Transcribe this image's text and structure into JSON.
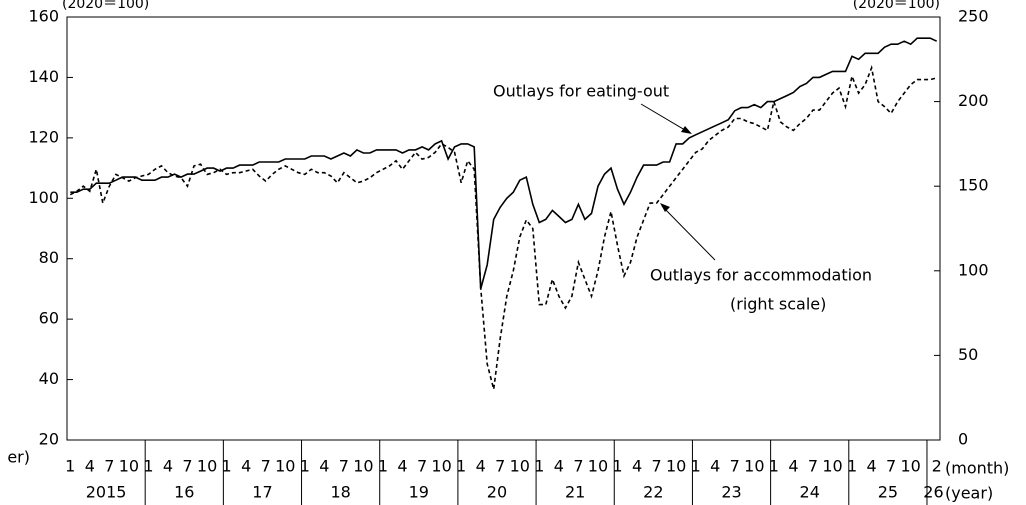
{
  "chart_data": {
    "type": "line",
    "left_unit": "(2020＝100)",
    "right_unit": "(2020＝100)",
    "x_month_label": "(month)",
    "x_year_label": "(year)",
    "left_cut_label": "er)",
    "annotations": [
      "Outlays for eating-out",
      "Outlays for accommodation",
      "(right scale)"
    ],
    "categories": [
      "1",
      null,
      null,
      "4",
      null,
      null,
      "7",
      null,
      null,
      "10",
      null,
      null,
      "1",
      null,
      null,
      "4",
      null,
      null,
      "7",
      null,
      null,
      "10",
      null,
      null,
      "1",
      null,
      null,
      "4",
      null,
      null,
      "7",
      null,
      null,
      "10",
      null,
      null,
      "1",
      null,
      null,
      "4",
      null,
      null,
      "7",
      null,
      null,
      "10",
      null,
      null,
      "1",
      null,
      null,
      "4",
      null,
      null,
      "7",
      null,
      null,
      "10",
      null,
      null,
      "1",
      null,
      null,
      "4",
      null,
      null,
      "7",
      null,
      null,
      "10",
      null,
      null,
      "1",
      null,
      null,
      "4",
      null,
      null,
      "7",
      null,
      null,
      "10",
      null,
      null,
      "1",
      null,
      null,
      "4",
      null,
      null,
      "7",
      null,
      null,
      "10",
      null,
      null,
      "1",
      null,
      null,
      "4",
      null,
      null,
      "7",
      null,
      null,
      "10",
      null,
      null,
      "1",
      null,
      null,
      "4",
      null,
      null,
      "7",
      null,
      null,
      "10",
      null,
      null,
      "1",
      null,
      null,
      "4",
      null,
      null,
      "7",
      null,
      null,
      "10",
      null,
      null,
      null,
      "2"
    ],
    "years": [
      "2015",
      "16",
      "17",
      "18",
      "19",
      "20",
      "21",
      "22",
      "23",
      "24",
      "25",
      "26"
    ],
    "ylim": [
      20,
      160
    ],
    "yticks": [
      20,
      40,
      60,
      80,
      100,
      120,
      140,
      160
    ],
    "y2lim": [
      0,
      250
    ],
    "y2ticks": [
      0,
      50,
      100,
      150,
      200,
      250
    ],
    "series": [
      {
        "name": "Outlays for eating-out",
        "color": "#000000",
        "dash": "solid",
        "values": [
          102,
          102,
          103,
          103,
          105,
          105,
          105,
          106,
          107,
          107,
          107,
          106,
          106,
          106,
          107,
          107,
          108,
          107,
          108,
          108,
          109,
          110,
          110,
          109,
          110,
          110,
          111,
          111,
          111,
          112,
          112,
          112,
          112,
          113,
          113,
          113,
          113,
          114,
          114,
          114,
          113,
          114,
          115,
          114,
          116,
          115,
          115,
          116,
          116,
          116,
          116,
          115,
          116,
          116,
          117,
          116,
          118,
          119,
          113,
          117,
          118,
          118,
          117,
          70,
          78,
          93,
          97,
          100,
          102,
          106,
          107,
          98,
          92,
          93,
          96,
          94,
          92,
          93,
          98,
          93,
          95,
          104,
          108,
          110,
          103,
          98,
          102,
          107,
          111,
          111,
          111,
          112,
          112,
          118,
          118,
          120,
          121,
          122,
          123,
          124,
          125,
          126,
          129,
          130,
          130,
          131,
          130,
          132,
          132,
          133,
          134,
          135,
          137,
          138,
          140,
          140,
          141,
          142,
          142,
          142,
          147,
          146,
          148,
          148,
          148,
          150,
          151,
          151,
          152,
          151,
          153,
          153,
          153,
          152
        ]
      },
      {
        "name": "Outlays for accommodation",
        "color": "#000000",
        "dash": "dashed",
        "axis": "y2",
        "values": [
          145,
          147,
          150,
          147,
          160,
          140,
          150,
          157,
          155,
          153,
          155,
          156,
          157,
          160,
          162,
          158,
          156,
          155,
          150,
          162,
          163,
          157,
          158,
          160,
          157,
          158,
          158,
          159,
          160,
          156,
          153,
          157,
          160,
          162,
          160,
          158,
          157,
          160,
          158,
          158,
          156,
          152,
          158,
          155,
          152,
          153,
          155,
          158,
          160,
          162,
          165,
          160,
          165,
          170,
          166,
          167,
          170,
          175,
          173,
          170,
          152,
          165,
          160,
          90,
          45,
          30,
          60,
          85,
          100,
          120,
          130,
          125,
          80,
          80,
          95,
          85,
          78,
          85,
          105,
          95,
          85,
          100,
          120,
          135,
          115,
          97,
          105,
          120,
          130,
          140,
          140,
          145,
          150,
          155,
          160,
          165,
          170,
          172,
          177,
          180,
          183,
          185,
          190,
          190,
          188,
          187,
          185,
          183,
          200,
          188,
          185,
          183,
          187,
          190,
          195,
          195,
          200,
          205,
          208,
          197,
          215,
          205,
          210,
          220,
          200,
          197,
          193,
          200,
          205,
          210,
          213,
          213,
          213,
          214
        ]
      }
    ]
  }
}
